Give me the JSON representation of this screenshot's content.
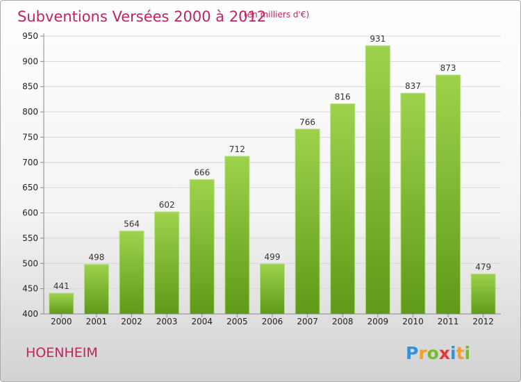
{
  "chart_data": {
    "type": "bar",
    "title": "Subventions Versées 2000 à 2012",
    "subtitle": "(en milliers d'€)",
    "categories": [
      "2000",
      "2001",
      "2002",
      "2003",
      "2004",
      "2005",
      "2006",
      "2007",
      "2008",
      "2009",
      "2010",
      "2011",
      "2012"
    ],
    "values": [
      441,
      498,
      564,
      602,
      666,
      712,
      499,
      766,
      816,
      931,
      837,
      873,
      479
    ],
    "ylim": [
      400,
      950
    ],
    "yticks": [
      400,
      450,
      500,
      550,
      600,
      650,
      700,
      750,
      800,
      850,
      900,
      950
    ],
    "grid": true,
    "bar_color": "#7dbb32",
    "title_color": "#c0245e"
  },
  "commune": "HOENHEIM",
  "logo": {
    "letters": [
      "P",
      "r",
      "o",
      "x",
      "i",
      "t",
      "i"
    ],
    "colors": [
      "#3b8fd4",
      "#f0a030",
      "#7cb82f",
      "#e03a3a",
      "#3b8fd4",
      "#f0a030",
      "#7cb82f"
    ]
  }
}
